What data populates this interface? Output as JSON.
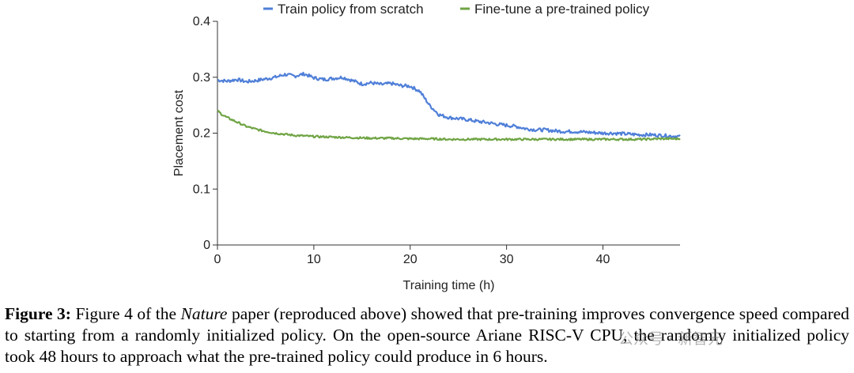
{
  "chart_data": {
    "type": "line",
    "title": "",
    "xlabel": "Training time (h)",
    "ylabel": "Placement cost",
    "xlim": [
      0,
      48
    ],
    "ylim": [
      0,
      0.4
    ],
    "xticks": [
      0,
      10,
      20,
      30,
      40
    ],
    "xtick_labels": [
      "0",
      "10",
      "20",
      "30",
      "40"
    ],
    "yticks": [
      0,
      0.1,
      0.2,
      0.3,
      0.4
    ],
    "ytick_labels": [
      "0",
      "0.1",
      "0.2",
      "0.3",
      "0.4"
    ],
    "grid": false,
    "legend_position": "top",
    "series": [
      {
        "name": "Train policy from scratch",
        "color": "#4f7fd8",
        "x": [
          0,
          1,
          2,
          3,
          4,
          5,
          6,
          7,
          8,
          9,
          10,
          11,
          12,
          13,
          14,
          15,
          16,
          17,
          18,
          19,
          20,
          21,
          22,
          23,
          24,
          25,
          26,
          27,
          28,
          29,
          30,
          31,
          32,
          33,
          34,
          35,
          36,
          37,
          38,
          39,
          40,
          41,
          42,
          43,
          44,
          45,
          46,
          47,
          48
        ],
        "y": [
          0.295,
          0.293,
          0.296,
          0.292,
          0.294,
          0.297,
          0.3,
          0.305,
          0.302,
          0.306,
          0.299,
          0.296,
          0.298,
          0.3,
          0.294,
          0.288,
          0.29,
          0.287,
          0.289,
          0.285,
          0.284,
          0.275,
          0.25,
          0.233,
          0.228,
          0.226,
          0.224,
          0.221,
          0.219,
          0.216,
          0.214,
          0.212,
          0.208,
          0.206,
          0.206,
          0.204,
          0.203,
          0.203,
          0.202,
          0.201,
          0.2,
          0.2,
          0.199,
          0.198,
          0.197,
          0.197,
          0.196,
          0.195,
          0.194
        ]
      },
      {
        "name": "Fine-tune a pre-trained policy",
        "color": "#6fa444",
        "x": [
          0,
          0.5,
          1,
          1.5,
          2,
          3,
          4,
          5,
          6,
          7,
          8,
          9,
          10,
          12,
          14,
          16,
          18,
          20,
          22,
          24,
          26,
          28,
          30,
          32,
          34,
          36,
          38,
          40,
          42,
          44,
          46,
          48
        ],
        "y": [
          0.24,
          0.233,
          0.228,
          0.224,
          0.22,
          0.212,
          0.207,
          0.203,
          0.2,
          0.198,
          0.196,
          0.195,
          0.194,
          0.193,
          0.192,
          0.191,
          0.191,
          0.19,
          0.19,
          0.189,
          0.189,
          0.189,
          0.189,
          0.189,
          0.189,
          0.189,
          0.189,
          0.189,
          0.189,
          0.189,
          0.19,
          0.19
        ]
      }
    ]
  },
  "caption": {
    "label": "Figure 3:",
    "part1": "Figure 4 of the",
    "italic": "Nature",
    "part2": "paper (reproduced above) showed that pre-training improves convergence speed compared to starting from a randomly initialized policy. On the open-source Ariane RISC-V CPU, the randomly initialized policy took 48 hours to approach what the pre-trained policy could produce in 6 hours."
  },
  "watermark": "公众号 · 新智元"
}
